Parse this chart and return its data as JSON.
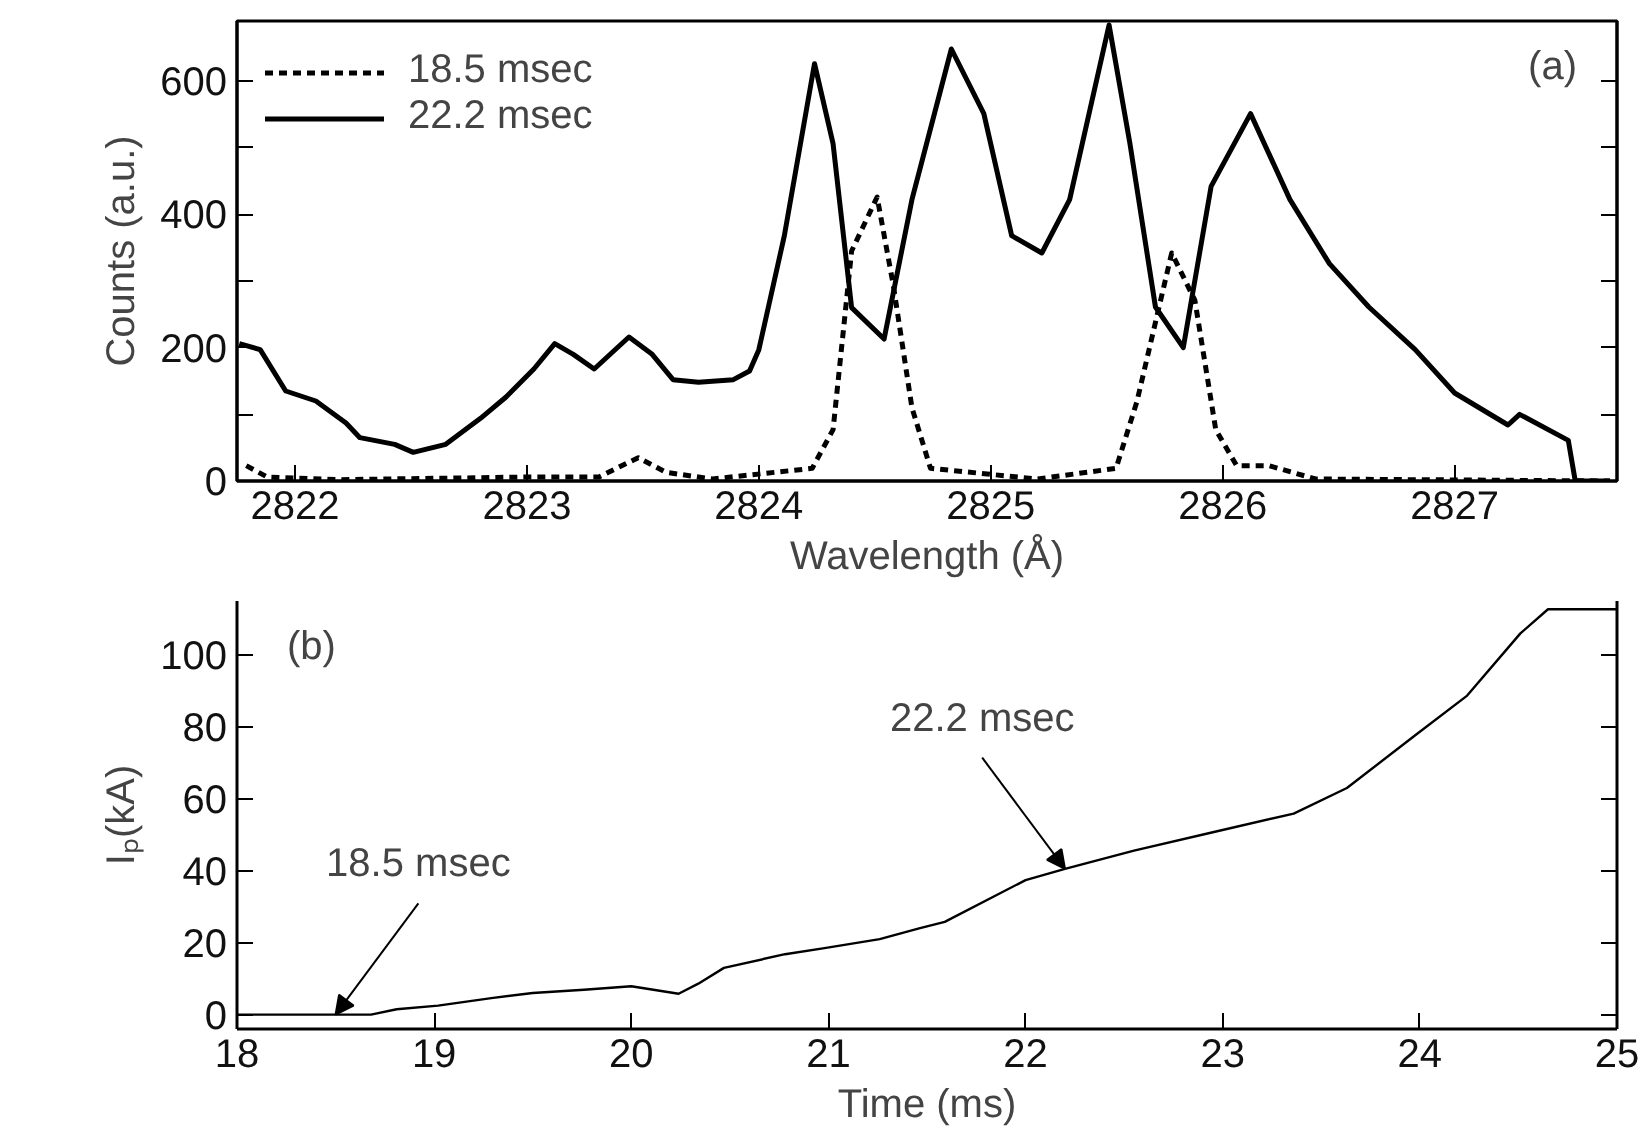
{
  "chart_data": [
    {
      "type": "line",
      "xlabel": "Wavelength (Å)",
      "ylabel": "Counts (a.u.)",
      "xlim": [
        2821.75,
        2827.7
      ],
      "ylim": [
        0,
        690
      ],
      "xticks": [
        2822,
        2823,
        2824,
        2825,
        2826,
        2827
      ],
      "yticks": [
        0,
        {
          "value": 100,
          "label": null
        },
        200,
        {
          "value": 300,
          "label": null
        },
        400,
        {
          "value": 500,
          "label": null
        },
        600
      ],
      "grid": false,
      "legend": "top left",
      "annotations": [
        "(a)"
      ],
      "series": [
        {
          "name": "18.5 msec",
          "color": "#000000",
          "line_style": "dashed",
          "x": [
            2821.79,
            2821.88,
            2822.2,
            2823.01,
            2823.31,
            2823.48,
            2823.6,
            2823.8,
            2824.23,
            2824.32,
            2824.4,
            2824.51,
            2824.58,
            2824.66,
            2824.74,
            2825.2,
            2825.54,
            2825.63,
            2825.78,
            2825.88,
            2825.97,
            2826.06,
            2826.2,
            2826.4,
            2827.67
          ],
          "values": [
            23,
            6,
            2,
            6,
            6,
            35,
            13,
            3,
            19,
            77,
            345,
            426,
            293,
            110,
            19,
            3,
            19,
            119,
            342,
            271,
            77,
            23,
            23,
            3,
            0
          ]
        },
        {
          "name": "22.2 msec",
          "color": "#000000",
          "line_style": "solid",
          "x": [
            2821.76,
            2821.85,
            2821.96,
            2822.09,
            2822.22,
            2822.28,
            2822.43,
            2822.51,
            2822.65,
            2822.8,
            2822.91,
            2823.03,
            2823.12,
            2823.2,
            2823.29,
            2823.44,
            2823.54,
            2823.63,
            2823.74,
            2823.89,
            2823.96,
            2824.0,
            2824.11,
            2824.24,
            2824.32,
            2824.4,
            2824.54,
            2824.66,
            2824.83,
            2824.97,
            2825.09,
            2825.22,
            2825.34,
            2825.51,
            2825.6,
            2825.71,
            2825.83,
            2825.95,
            2826.12,
            2826.29,
            2826.46,
            2826.63,
            2826.83,
            2827.0,
            2827.23,
            2827.28,
            2827.49,
            2827.52,
            2827.67
          ],
          "values": [
            206,
            197,
            135,
            120,
            87,
            65,
            55,
            43,
            55,
            94,
            126,
            168,
            206,
            190,
            168,
            216,
            190,
            152,
            148,
            152,
            165,
            197,
            368,
            626,
            506,
            260,
            213,
            422,
            648,
            551,
            368,
            342,
            422,
            684,
            506,
            261,
            200,
            442,
            551,
            422,
            326,
            261,
            197,
            132,
            84,
            100,
            61,
            0,
            0
          ]
        }
      ]
    },
    {
      "type": "line",
      "xlabel": "Time (ms)",
      "ylabel": "Iₚ(kA)",
      "xlim": [
        18,
        25
      ],
      "ylim": [
        -4,
        115
      ],
      "xticks": [
        18,
        19,
        20,
        21,
        22,
        23,
        24,
        25
      ],
      "yticks": [
        0,
        20,
        40,
        60,
        80,
        100
      ],
      "grid": false,
      "annotations": [
        "(b)",
        {
          "text": "18.5 msec",
          "x": 18.5,
          "y": 0
        },
        {
          "text": "22.2 msec",
          "x": 22.2,
          "y": 40.5
        }
      ],
      "series": [
        {
          "color": "#000000",
          "line_style": "solid",
          "x": [
            18.0,
            18.68,
            18.81,
            19.02,
            19.29,
            19.5,
            19.76,
            20.0,
            20.24,
            20.34,
            20.47,
            20.78,
            20.98,
            21.26,
            21.46,
            21.59,
            22.0,
            22.2,
            22.55,
            22.95,
            23.36,
            23.63,
            23.97,
            24.24,
            24.51,
            24.65,
            25.0
          ],
          "values": [
            0,
            0,
            1.5,
            2.5,
            4.6,
            6,
            6.9,
            7.9,
            5.8,
            8.6,
            13,
            16.8,
            18.5,
            21,
            24,
            25.8,
            37.4,
            40.5,
            45.6,
            50.7,
            55.9,
            63,
            77.4,
            88.7,
            106,
            112.7,
            112.7
          ]
        }
      ]
    }
  ]
}
